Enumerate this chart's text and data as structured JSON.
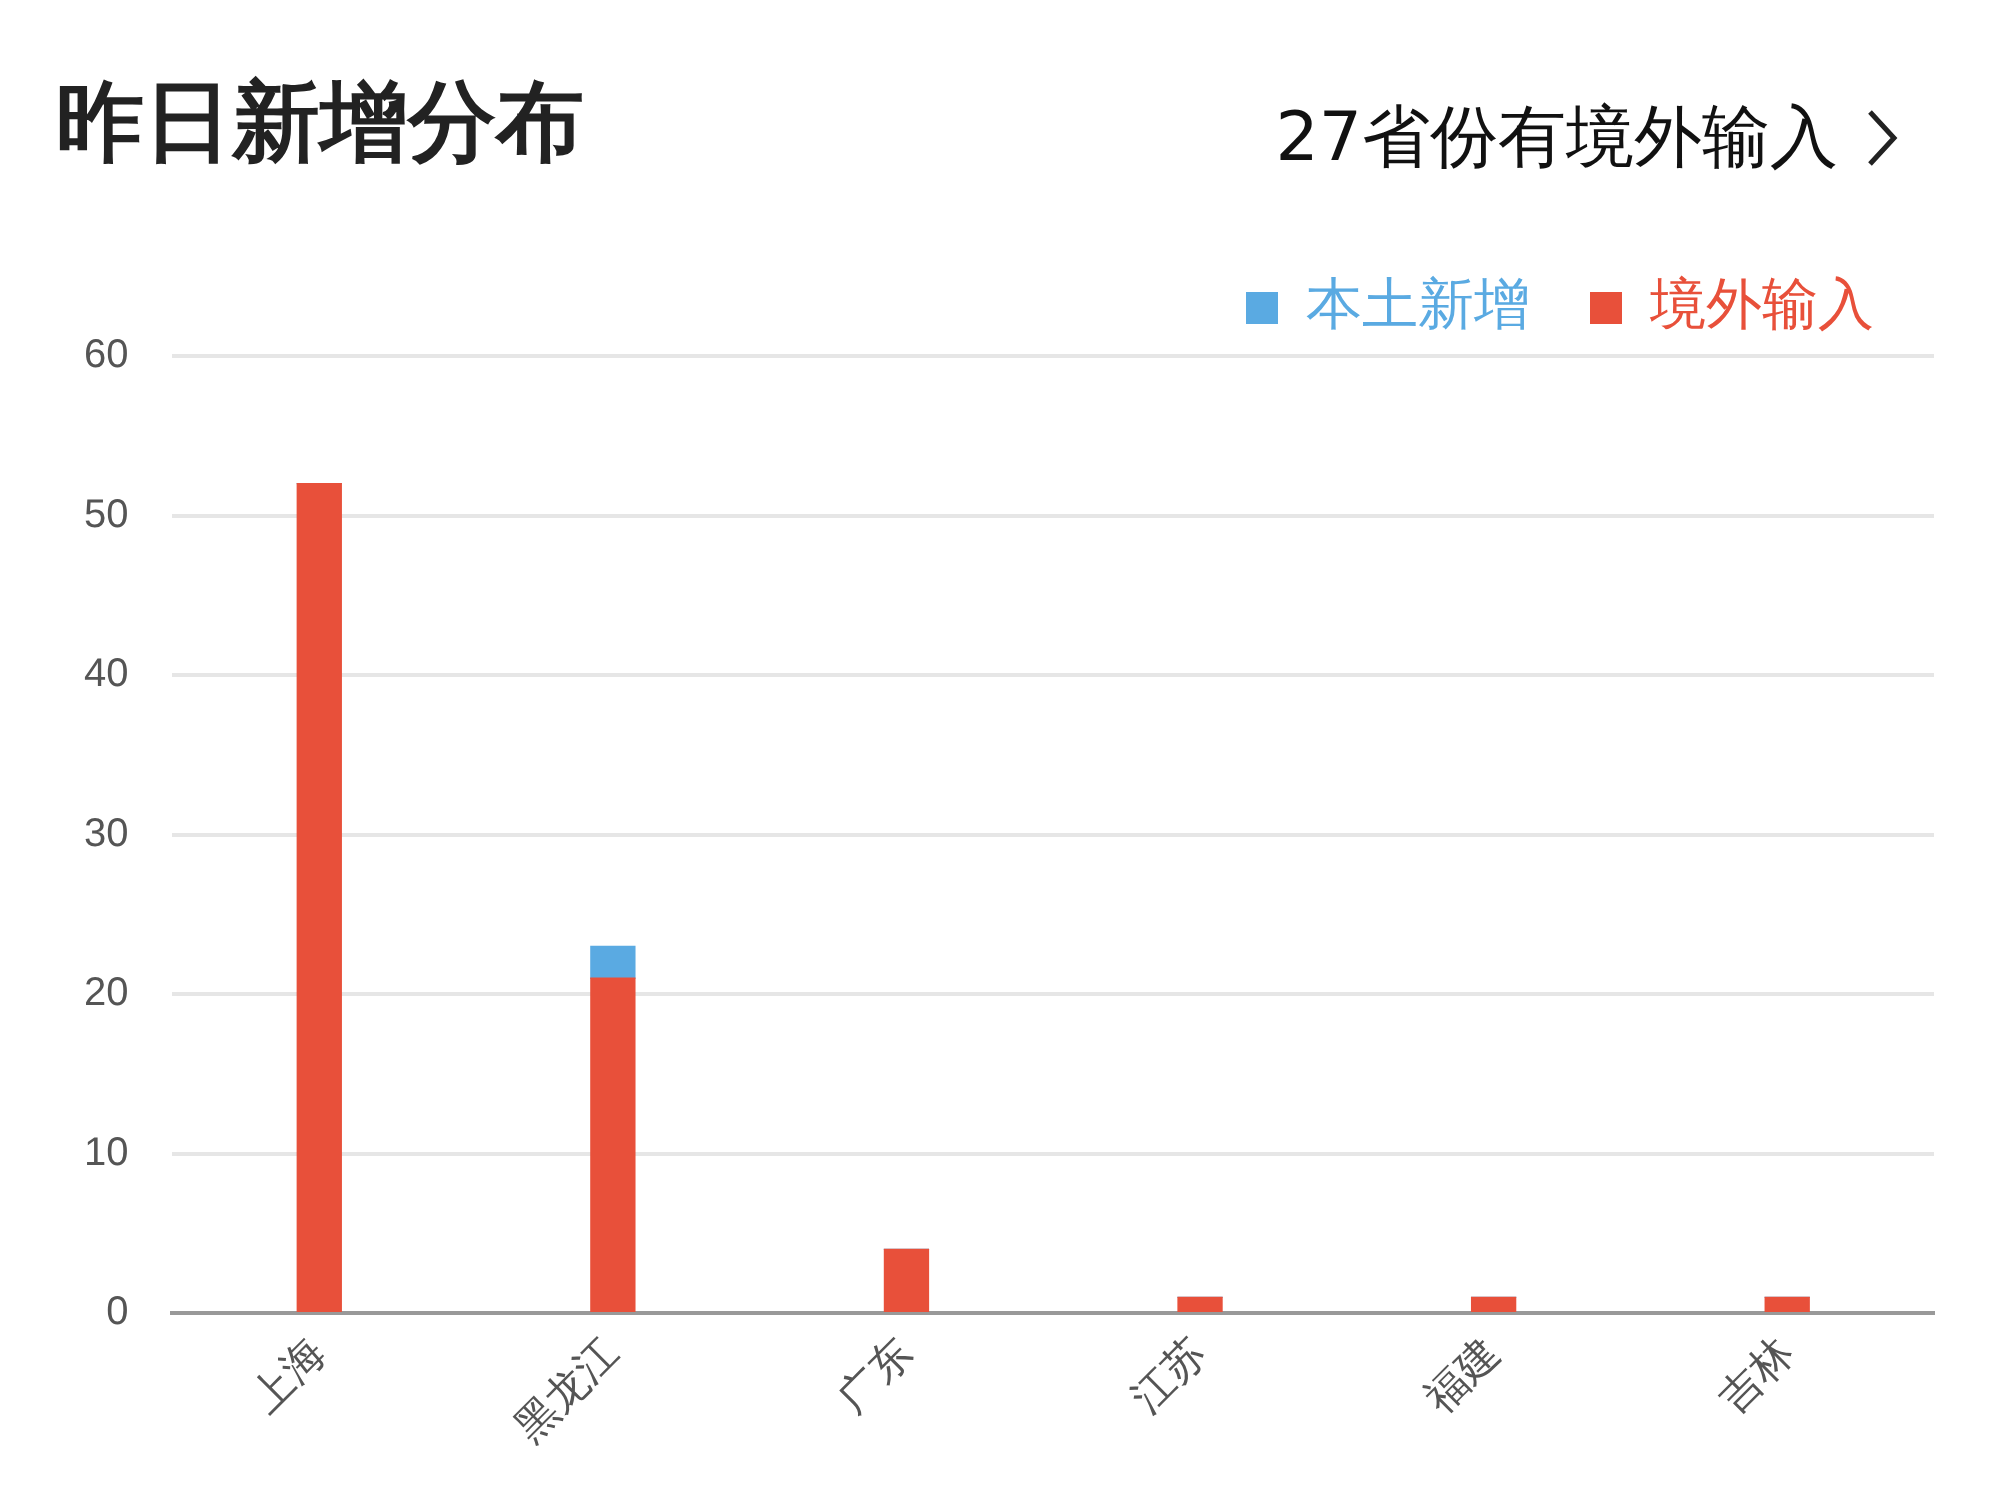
{
  "chart_data": {
    "type": "bar",
    "title": "昨日新增分布",
    "annotations": [
      "27省份有境外输入"
    ],
    "categories": [
      "上海",
      "黑龙江",
      "广东",
      "江苏",
      "福建",
      "吉林"
    ],
    "series": [
      {
        "name": "境外输入",
        "color": "#e8503a",
        "values": [
          52,
          21,
          4,
          1,
          1,
          1
        ]
      },
      {
        "name": "本土新增",
        "color": "#5aaae2",
        "values": [
          0,
          2,
          0,
          0,
          0,
          0
        ]
      }
    ],
    "stacked": true,
    "ylim": [
      0,
      60
    ],
    "yticks": [
      0,
      10,
      20,
      30,
      40,
      50,
      60
    ],
    "grid": "y",
    "legend": "top right"
  }
}
